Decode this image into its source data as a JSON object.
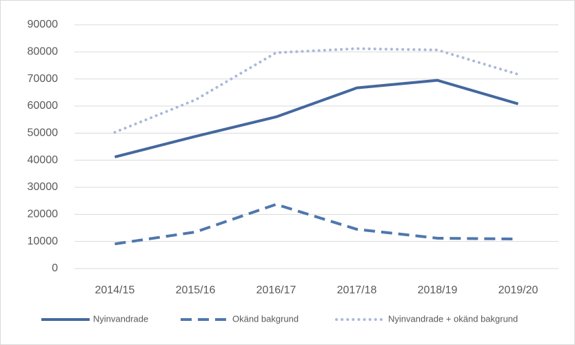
{
  "chart_data": {
    "type": "line",
    "categories": [
      "2014/15",
      "2015/16",
      "2016/17",
      "2017/18",
      "2018/19",
      "2019/20"
    ],
    "series": [
      {
        "name": "Nyinvandrade",
        "color": "#44689e",
        "dash": "solid",
        "values": [
          41200,
          48800,
          56000,
          66700,
          69500,
          60800
        ]
      },
      {
        "name": "Okänd bakgrund",
        "color": "#4f77ad",
        "dash": "dashed",
        "values": [
          9100,
          13500,
          23700,
          14500,
          11200,
          10900
        ]
      },
      {
        "name": "Nyinvandrade + okänd bakgrund",
        "color": "#a9b9d9",
        "dash": "dotted",
        "values": [
          50300,
          62300,
          79700,
          81200,
          80700,
          71700
        ]
      }
    ],
    "ylim": [
      0,
      90000
    ],
    "yticks": [
      0,
      10000,
      20000,
      30000,
      40000,
      50000,
      60000,
      70000,
      80000,
      90000
    ],
    "grid": true,
    "legend": "bottom"
  }
}
